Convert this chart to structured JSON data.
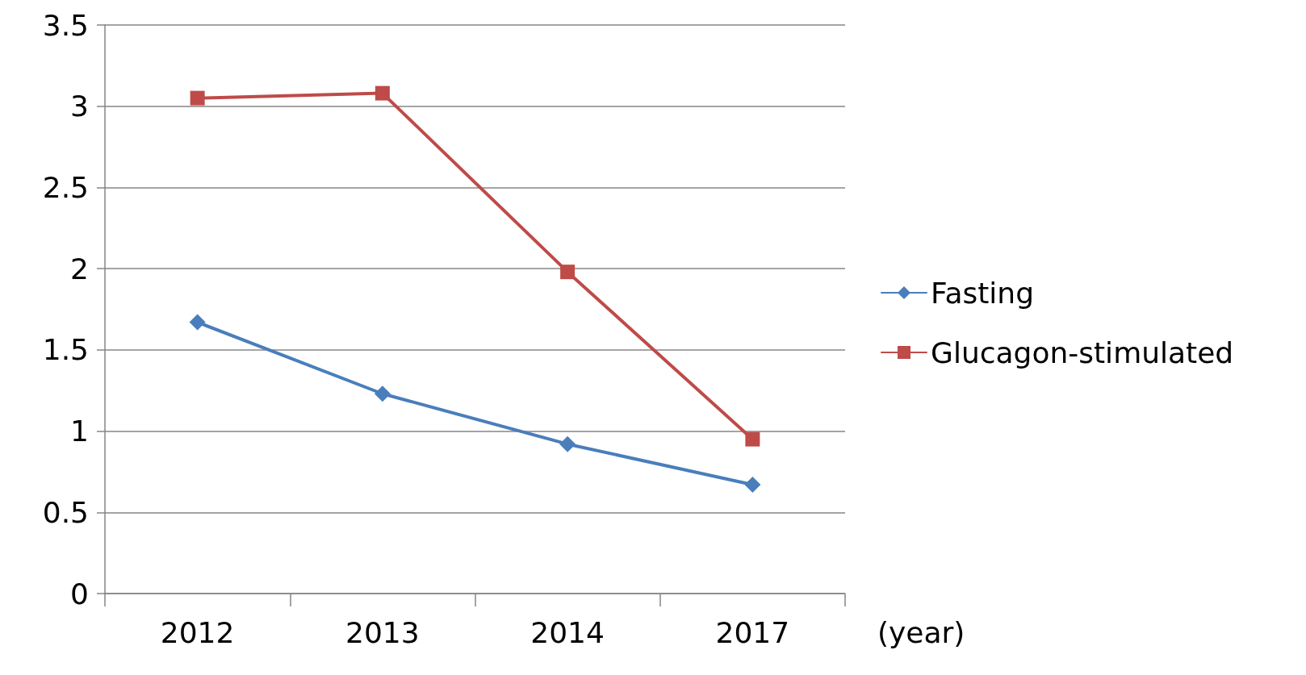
{
  "chart_data": {
    "type": "line",
    "xlabel": "(year)",
    "categories": [
      "2012",
      "2013",
      "2014",
      "2017"
    ],
    "series": [
      {
        "name": "Fasting",
        "color": "#4a7ebb",
        "marker": "diamond",
        "values": [
          1.67,
          1.23,
          0.92,
          0.67
        ]
      },
      {
        "name": "Glucagon-stimulated",
        "color": "#be4b48",
        "marker": "square",
        "values": [
          3.05,
          3.08,
          1.98,
          0.95
        ]
      }
    ],
    "ylim": [
      0,
      3.5
    ],
    "yticks": [
      0,
      0.5,
      1,
      1.5,
      2,
      2.5,
      3,
      3.5
    ],
    "grid": "y",
    "legend": "right",
    "line_style": "solid"
  }
}
